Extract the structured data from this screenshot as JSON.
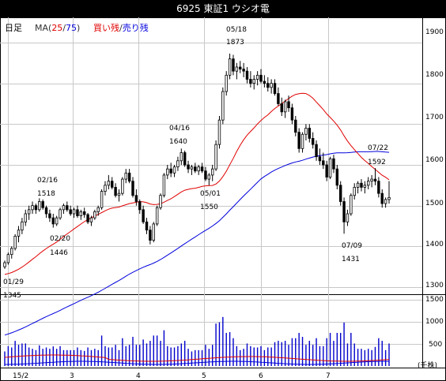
{
  "header": {
    "title": "6925 東証1 ウシオ電",
    "period": "日足",
    "ma_label": "MA(",
    "ma_short": "25",
    "ma_sep": "/",
    "ma_long": "75",
    "ma_close": ")",
    "buy_label": "買い残",
    "sep": "/",
    "sell_label": "売り残"
  },
  "colors": {
    "ma25": "#e00000",
    "ma75": "#0000dd",
    "buy": "#e00000",
    "sell": "#0000dd",
    "grid": "#c8c8c8",
    "volume": "#0000cc"
  },
  "chart_data": [
    {
      "type": "candlestick",
      "title": "6925 東証1 ウシオ電",
      "period": "日足",
      "y_axis": {
        "ticks": [
          1300,
          1400,
          1500,
          1600,
          1700,
          1800,
          1900
        ],
        "side": "right"
      },
      "x_axis": {
        "tick_labels": [
          "15/2",
          "3",
          "4",
          "5",
          "6",
          "7"
        ]
      },
      "grid": true,
      "annotations": [
        {
          "date": "01/29",
          "value": "1345"
        },
        {
          "date": "02/16",
          "value": "1518"
        },
        {
          "date": "02/20",
          "value": "1446"
        },
        {
          "date": "04/16",
          "value": "1640"
        },
        {
          "date": "05/01",
          "value": "1550"
        },
        {
          "date": "05/18",
          "value": "1873"
        },
        {
          "date": "07/09",
          "value": "1431"
        },
        {
          "date": "07/22",
          "value": "1592"
        }
      ],
      "candles_ohlc": [
        [
          1350,
          1365,
          1345,
          1360
        ],
        [
          1360,
          1385,
          1355,
          1380
        ],
        [
          1380,
          1400,
          1370,
          1395
        ],
        [
          1395,
          1430,
          1390,
          1425
        ],
        [
          1425,
          1450,
          1410,
          1440
        ],
        [
          1440,
          1470,
          1430,
          1460
        ],
        [
          1460,
          1490,
          1450,
          1480
        ],
        [
          1480,
          1500,
          1465,
          1490
        ],
        [
          1490,
          1510,
          1480,
          1500
        ],
        [
          1500,
          1505,
          1480,
          1490
        ],
        [
          1490,
          1518,
          1485,
          1510
        ],
        [
          1510,
          1515,
          1490,
          1495
        ],
        [
          1495,
          1500,
          1470,
          1480
        ],
        [
          1480,
          1490,
          1460,
          1470
        ],
        [
          1470,
          1480,
          1446,
          1455
        ],
        [
          1455,
          1475,
          1450,
          1470
        ],
        [
          1470,
          1495,
          1465,
          1490
        ],
        [
          1490,
          1505,
          1480,
          1500
        ],
        [
          1500,
          1510,
          1485,
          1490
        ],
        [
          1490,
          1500,
          1475,
          1480
        ],
        [
          1480,
          1495,
          1470,
          1490
        ],
        [
          1490,
          1500,
          1470,
          1475
        ],
        [
          1475,
          1490,
          1465,
          1485
        ],
        [
          1485,
          1495,
          1470,
          1478
        ],
        [
          1478,
          1482,
          1455,
          1460
        ],
        [
          1460,
          1475,
          1450,
          1470
        ],
        [
          1470,
          1490,
          1465,
          1485
        ],
        [
          1485,
          1500,
          1475,
          1495
        ],
        [
          1495,
          1540,
          1490,
          1535
        ],
        [
          1535,
          1560,
          1525,
          1550
        ],
        [
          1550,
          1575,
          1540,
          1560
        ],
        [
          1560,
          1570,
          1540,
          1545
        ],
        [
          1545,
          1555,
          1520,
          1525
        ],
        [
          1525,
          1540,
          1510,
          1530
        ],
        [
          1530,
          1570,
          1525,
          1565
        ],
        [
          1565,
          1590,
          1555,
          1580
        ],
        [
          1580,
          1590,
          1555,
          1560
        ],
        [
          1560,
          1570,
          1520,
          1525
        ],
        [
          1525,
          1540,
          1500,
          1510
        ],
        [
          1510,
          1515,
          1480,
          1490
        ],
        [
          1490,
          1500,
          1455,
          1460
        ],
        [
          1460,
          1470,
          1430,
          1440
        ],
        [
          1440,
          1450,
          1405,
          1415
        ],
        [
          1415,
          1460,
          1410,
          1455
        ],
        [
          1455,
          1500,
          1450,
          1495
        ],
        [
          1495,
          1530,
          1490,
          1525
        ],
        [
          1525,
          1580,
          1520,
          1575
        ],
        [
          1575,
          1600,
          1565,
          1590
        ],
        [
          1590,
          1605,
          1570,
          1580
        ],
        [
          1580,
          1600,
          1570,
          1595
        ],
        [
          1595,
          1620,
          1585,
          1610
        ],
        [
          1610,
          1640,
          1600,
          1630
        ],
        [
          1630,
          1635,
          1595,
          1600
        ],
        [
          1600,
          1610,
          1580,
          1590
        ],
        [
          1590,
          1600,
          1575,
          1595
        ],
        [
          1595,
          1605,
          1580,
          1585
        ],
        [
          1585,
          1600,
          1575,
          1595
        ],
        [
          1595,
          1605,
          1580,
          1585
        ],
        [
          1585,
          1595,
          1560,
          1565
        ],
        [
          1565,
          1580,
          1550,
          1575
        ],
        [
          1575,
          1600,
          1560,
          1590
        ],
        [
          1590,
          1660,
          1585,
          1650
        ],
        [
          1650,
          1720,
          1640,
          1710
        ],
        [
          1710,
          1790,
          1700,
          1780
        ],
        [
          1780,
          1830,
          1770,
          1820
        ],
        [
          1820,
          1873,
          1810,
          1860
        ],
        [
          1860,
          1870,
          1820,
          1830
        ],
        [
          1830,
          1850,
          1810,
          1840
        ],
        [
          1840,
          1855,
          1825,
          1835
        ],
        [
          1835,
          1850,
          1815,
          1830
        ],
        [
          1830,
          1840,
          1800,
          1810
        ],
        [
          1810,
          1830,
          1790,
          1800
        ],
        [
          1800,
          1820,
          1785,
          1810
        ],
        [
          1810,
          1830,
          1795,
          1820
        ],
        [
          1820,
          1835,
          1800,
          1805
        ],
        [
          1805,
          1820,
          1790,
          1800
        ],
        [
          1800,
          1815,
          1780,
          1790
        ],
        [
          1790,
          1810,
          1775,
          1800
        ],
        [
          1800,
          1810,
          1770,
          1775
        ],
        [
          1775,
          1790,
          1745,
          1750
        ],
        [
          1750,
          1765,
          1720,
          1730
        ],
        [
          1730,
          1760,
          1715,
          1755
        ],
        [
          1755,
          1770,
          1730,
          1740
        ],
        [
          1740,
          1750,
          1700,
          1710
        ],
        [
          1710,
          1720,
          1670,
          1680
        ],
        [
          1680,
          1690,
          1630,
          1640
        ],
        [
          1640,
          1680,
          1630,
          1675
        ],
        [
          1675,
          1700,
          1660,
          1690
        ],
        [
          1690,
          1700,
          1655,
          1665
        ],
        [
          1665,
          1680,
          1640,
          1650
        ],
        [
          1650,
          1660,
          1610,
          1620
        ],
        [
          1620,
          1640,
          1600,
          1610
        ],
        [
          1610,
          1630,
          1590,
          1600
        ],
        [
          1600,
          1610,
          1560,
          1570
        ],
        [
          1570,
          1620,
          1565,
          1615
        ],
        [
          1615,
          1625,
          1580,
          1590
        ],
        [
          1590,
          1600,
          1540,
          1550
        ],
        [
          1550,
          1560,
          1500,
          1510
        ],
        [
          1510,
          1520,
          1431,
          1460
        ],
        [
          1460,
          1490,
          1450,
          1480
        ],
        [
          1480,
          1530,
          1475,
          1525
        ],
        [
          1525,
          1555,
          1515,
          1545
        ],
        [
          1545,
          1560,
          1530,
          1555
        ],
        [
          1555,
          1565,
          1535,
          1545
        ],
        [
          1545,
          1560,
          1530,
          1550
        ],
        [
          1550,
          1570,
          1540,
          1560
        ],
        [
          1560,
          1575,
          1545,
          1565
        ],
        [
          1565,
          1592,
          1550,
          1560
        ],
        [
          1560,
          1570,
          1520,
          1530
        ],
        [
          1530,
          1540,
          1495,
          1505
        ],
        [
          1505,
          1520,
          1495,
          1515
        ],
        [
          1515,
          1560,
          1505,
          1520
        ]
      ],
      "volume_axis": {
        "ticks": [
          500,
          1000,
          1500
        ],
        "unit": "(千株)"
      }
    }
  ],
  "labels": {
    "price_ticks": [
      "1300",
      "1400",
      "1500",
      "1600",
      "1700",
      "1800",
      "1900"
    ],
    "volume_ticks": [
      "500",
      "1000",
      "1500"
    ],
    "volume_unit": "(千株)",
    "x_ticks": [
      "15/2",
      "3",
      "4",
      "5",
      "6",
      "7"
    ],
    "ann": {
      "a0129_date": "01/29",
      "a0129_val": "1345",
      "a0216_date": "02/16",
      "a0216_val": "1518",
      "a0220_date": "02/20",
      "a0220_val": "1446",
      "a0416_date": "04/16",
      "a0416_val": "1640",
      "a0501_date": "05/01",
      "a0501_val": "1550",
      "a0518_date": "05/18",
      "a0518_val": "1873",
      "a0709_date": "07/09",
      "a0709_val": "1431",
      "a0722_date": "07/22",
      "a0722_val": "1592"
    }
  }
}
